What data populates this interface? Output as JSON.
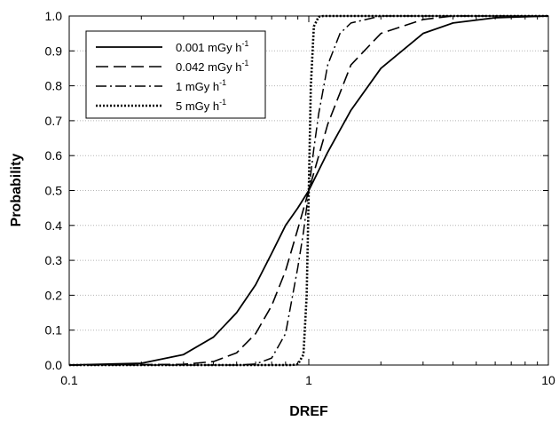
{
  "chart_data": {
    "type": "line",
    "title": "",
    "xlabel": "DREF",
    "ylabel": "Probability",
    "x_scale": "log",
    "xlim": [
      0.1,
      10
    ],
    "ylim": [
      0.0,
      1.0
    ],
    "x_ticks": [
      "0.1",
      "1",
      "10"
    ],
    "y_ticks": [
      "0.0",
      "0.1",
      "0.2",
      "0.3",
      "0.4",
      "0.5",
      "0.6",
      "0.7",
      "0.8",
      "0.9",
      "1.0"
    ],
    "grid": "horizontal dotted",
    "legend_position": "top-left",
    "series": [
      {
        "name": "0.001 mGy h",
        "unit_exponent": "-1",
        "style": "solid",
        "x": [
          0.1,
          0.2,
          0.3,
          0.4,
          0.5,
          0.6,
          0.7,
          0.8,
          0.9,
          1.0,
          1.2,
          1.5,
          2.0,
          3.0,
          4.0,
          6.0,
          10.0
        ],
        "y": [
          0.0,
          0.005,
          0.03,
          0.08,
          0.15,
          0.23,
          0.32,
          0.4,
          0.45,
          0.5,
          0.61,
          0.73,
          0.85,
          0.95,
          0.98,
          0.995,
          1.0
        ]
      },
      {
        "name": "0.042 mGy h",
        "unit_exponent": "-1",
        "style": "dashed",
        "x": [
          0.1,
          0.3,
          0.4,
          0.5,
          0.6,
          0.7,
          0.8,
          0.9,
          1.0,
          1.2,
          1.5,
          2.0,
          3.0,
          4.0,
          10.0
        ],
        "y": [
          0.0,
          0.002,
          0.01,
          0.035,
          0.09,
          0.17,
          0.27,
          0.39,
          0.5,
          0.69,
          0.86,
          0.95,
          0.99,
          1.0,
          1.0
        ]
      },
      {
        "name": "1 mGy h",
        "unit_exponent": "-1",
        "style": "dash-dot",
        "x": [
          0.1,
          0.5,
          0.6,
          0.7,
          0.8,
          0.9,
          0.95,
          1.0,
          1.05,
          1.1,
          1.2,
          1.35,
          1.5,
          2.0,
          10.0
        ],
        "y": [
          0.0,
          0.0,
          0.003,
          0.02,
          0.09,
          0.28,
          0.38,
          0.5,
          0.62,
          0.72,
          0.86,
          0.95,
          0.98,
          1.0,
          1.0
        ]
      },
      {
        "name": "5 mGy h",
        "unit_exponent": "-1",
        "style": "dotted",
        "x": [
          0.1,
          0.85,
          0.9,
          0.95,
          0.98,
          1.0,
          1.02,
          1.05,
          1.1,
          1.15,
          10.0
        ],
        "y": [
          0.0,
          0.0,
          0.002,
          0.03,
          0.2,
          0.5,
          0.8,
          0.97,
          0.998,
          1.0,
          1.0
        ]
      }
    ]
  }
}
